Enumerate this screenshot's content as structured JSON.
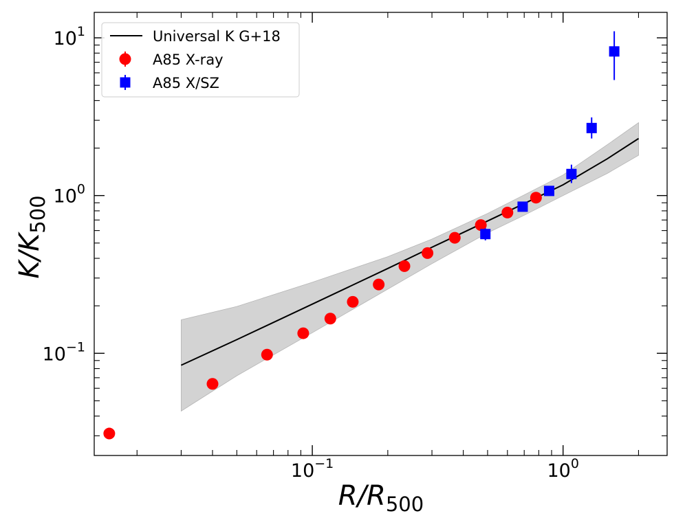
{
  "chart_data": {
    "type": "scatter",
    "title": "",
    "xlabel": {
      "base": "R/R",
      "sub": "500"
    },
    "ylabel": {
      "base": "K/K",
      "sub": "500"
    },
    "xscale": "log",
    "yscale": "log",
    "xlim": [
      0.0135,
      2.6
    ],
    "ylim": [
      0.0225,
      14.5
    ],
    "xticks": [
      {
        "value": 0.1,
        "base": "10",
        "exp": "−1"
      },
      {
        "value": 1,
        "base": "10",
        "exp": "0"
      }
    ],
    "yticks": [
      {
        "value": 0.1,
        "base": "10",
        "exp": "−1"
      },
      {
        "value": 1,
        "base": "10",
        "exp": "0"
      },
      {
        "value": 10,
        "base": "10",
        "exp": "1"
      }
    ],
    "legend_position": "top-left",
    "series": [
      {
        "name": "Universal K G+18",
        "kind": "line",
        "color": "#000000",
        "x": [
          0.03,
          0.05,
          0.1,
          0.2,
          0.3,
          0.5,
          0.7,
          1.0,
          1.5,
          2.0
        ],
        "y": [
          0.084,
          0.122,
          0.205,
          0.345,
          0.47,
          0.69,
          0.89,
          1.17,
          1.71,
          2.3
        ]
      },
      {
        "name": "A85 X-ray",
        "kind": "points",
        "marker": "circle",
        "color": "#ff0000",
        "x": [
          0.0155,
          0.04,
          0.066,
          0.092,
          0.118,
          0.145,
          0.184,
          0.233,
          0.288,
          0.37,
          0.47,
          0.6,
          0.78
        ],
        "y": [
          0.031,
          0.064,
          0.098,
          0.134,
          0.166,
          0.212,
          0.273,
          0.357,
          0.432,
          0.54,
          0.65,
          0.78,
          0.97
        ]
      },
      {
        "name": "A85 X/SZ",
        "kind": "points",
        "marker": "square",
        "color": "#0000ff",
        "x": [
          0.49,
          0.69,
          0.88,
          1.08,
          1.3,
          1.6
        ],
        "y": [
          0.57,
          0.85,
          1.07,
          1.37,
          2.68,
          8.2
        ],
        "yerr_low": [
          0.05,
          0.05,
          0.07,
          0.17,
          0.38,
          2.8
        ],
        "yerr_high": [
          0.05,
          0.05,
          0.07,
          0.2,
          0.45,
          2.8
        ]
      }
    ],
    "band": {
      "color": "#d3d3d3",
      "x": [
        0.03,
        0.05,
        0.1,
        0.2,
        0.3,
        0.5,
        0.7,
        1.0,
        1.5,
        2.0
      ],
      "y_low": [
        0.043,
        0.072,
        0.135,
        0.255,
        0.37,
        0.58,
        0.75,
        1.0,
        1.38,
        1.8
      ],
      "y_high": [
        0.163,
        0.198,
        0.282,
        0.41,
        0.53,
        0.77,
        1.01,
        1.35,
        2.1,
        2.9
      ]
    }
  }
}
